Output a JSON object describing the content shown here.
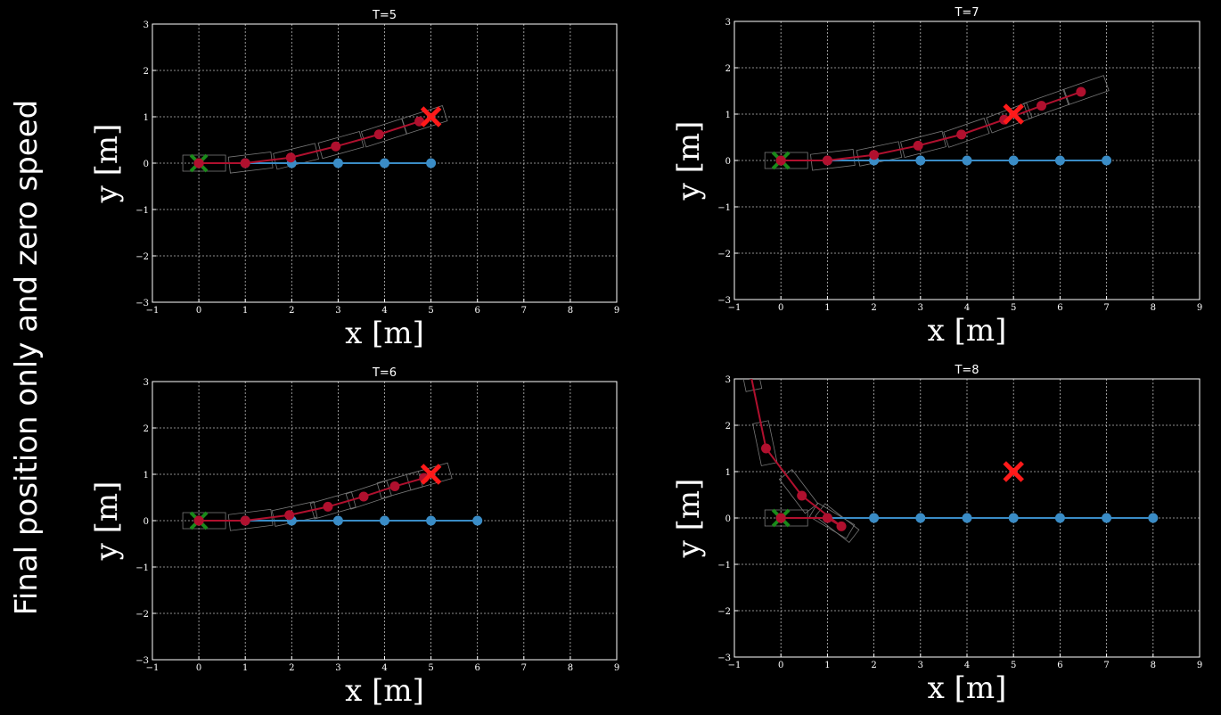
{
  "side_title": "Final position only and zero speed",
  "colors": {
    "background": "#000000",
    "reference": "#3a8cc6",
    "trajectory": "#b0102e",
    "start_marker": "#1a8a1a",
    "target_marker": "#ff1a1a",
    "frame": "#ffffff",
    "grid": "#bbbbbb"
  },
  "chart_data": [
    {
      "type": "line",
      "title": "T=5",
      "xlabel": "x [m]",
      "ylabel": "y [m]",
      "xlim": [
        -1,
        9
      ],
      "ylim": [
        -3,
        3
      ],
      "xticks": [
        "−1",
        "0",
        "1",
        "2",
        "3",
        "4",
        "5",
        "6",
        "7",
        "8",
        "9"
      ],
      "yticks": [
        "−3",
        "−2",
        "−1",
        "0",
        "1",
        "2",
        "3"
      ],
      "grid": true,
      "series": [
        {
          "role": "reference",
          "x": [
            0,
            1,
            2,
            3,
            4,
            5
          ],
          "y": [
            0,
            0,
            0,
            0,
            0,
            0
          ]
        },
        {
          "role": "trajectory",
          "x": [
            0,
            1,
            1.98,
            2.95,
            3.88,
            4.75
          ],
          "y": [
            0,
            0,
            0.12,
            0.36,
            0.62,
            0.9
          ]
        }
      ],
      "start": [
        0,
        0
      ],
      "target": [
        5,
        1
      ]
    },
    {
      "type": "line",
      "title": "T=7",
      "xlabel": "x [m]",
      "ylabel": "y [m]",
      "xlim": [
        -1,
        9
      ],
      "ylim": [
        -3,
        3
      ],
      "xticks": [
        "−1",
        "0",
        "1",
        "2",
        "3",
        "4",
        "5",
        "6",
        "7",
        "8",
        "9"
      ],
      "yticks": [
        "−3",
        "−2",
        "−1",
        "0",
        "1",
        "2",
        "3"
      ],
      "grid": true,
      "series": [
        {
          "role": "reference",
          "x": [
            0,
            1,
            2,
            3,
            4,
            5,
            6,
            7
          ],
          "y": [
            0,
            0,
            0,
            0,
            0,
            0,
            0,
            0
          ]
        },
        {
          "role": "trajectory",
          "x": [
            0,
            1,
            2,
            2.95,
            3.88,
            4.8,
            5.6,
            6.45
          ],
          "y": [
            0,
            0,
            0.12,
            0.32,
            0.56,
            0.88,
            1.18,
            1.48
          ]
        }
      ],
      "start": [
        0,
        0
      ],
      "target": [
        5,
        1
      ]
    },
    {
      "type": "line",
      "title": "T=6",
      "xlabel": "x [m]",
      "ylabel": "y [m]",
      "xlim": [
        -1,
        9
      ],
      "ylim": [
        -3,
        3
      ],
      "xticks": [
        "−1",
        "0",
        "1",
        "2",
        "3",
        "4",
        "5",
        "6",
        "7",
        "8",
        "9"
      ],
      "yticks": [
        "−3",
        "−2",
        "−1",
        "0",
        "1",
        "2",
        "3"
      ],
      "grid": true,
      "series": [
        {
          "role": "reference",
          "x": [
            0,
            1,
            2,
            3,
            4,
            5,
            6
          ],
          "y": [
            0,
            0,
            0,
            0,
            0,
            0,
            0
          ]
        },
        {
          "role": "trajectory",
          "x": [
            0,
            1,
            1.95,
            2.78,
            3.55,
            4.22,
            4.85
          ],
          "y": [
            0,
            0,
            0.12,
            0.3,
            0.52,
            0.74,
            0.92
          ]
        }
      ],
      "start": [
        0,
        0
      ],
      "target": [
        5,
        1
      ]
    },
    {
      "type": "line",
      "title": "T=8",
      "xlabel": "x [m]",
      "ylabel": "y [m]",
      "xlim": [
        -1,
        9
      ],
      "ylim": [
        -3,
        3
      ],
      "xticks": [
        "−1",
        "0",
        "1",
        "2",
        "3",
        "4",
        "5",
        "6",
        "7",
        "8",
        "9"
      ],
      "yticks": [
        "−3",
        "−2",
        "−1",
        "0",
        "1",
        "2",
        "3"
      ],
      "grid": true,
      "series": [
        {
          "role": "reference",
          "x": [
            0,
            1,
            2,
            3,
            4,
            5,
            6,
            7,
            8
          ],
          "y": [
            0,
            0,
            0,
            0,
            0,
            0,
            0,
            0,
            0
          ]
        },
        {
          "role": "trajectory",
          "x": [
            0,
            1,
            1.3,
            0.45,
            -0.32,
            -0.65
          ],
          "y": [
            0,
            0,
            -0.18,
            0.48,
            1.5,
            3.1
          ]
        }
      ],
      "start": [
        0,
        0
      ],
      "target": [
        5,
        1
      ]
    }
  ]
}
